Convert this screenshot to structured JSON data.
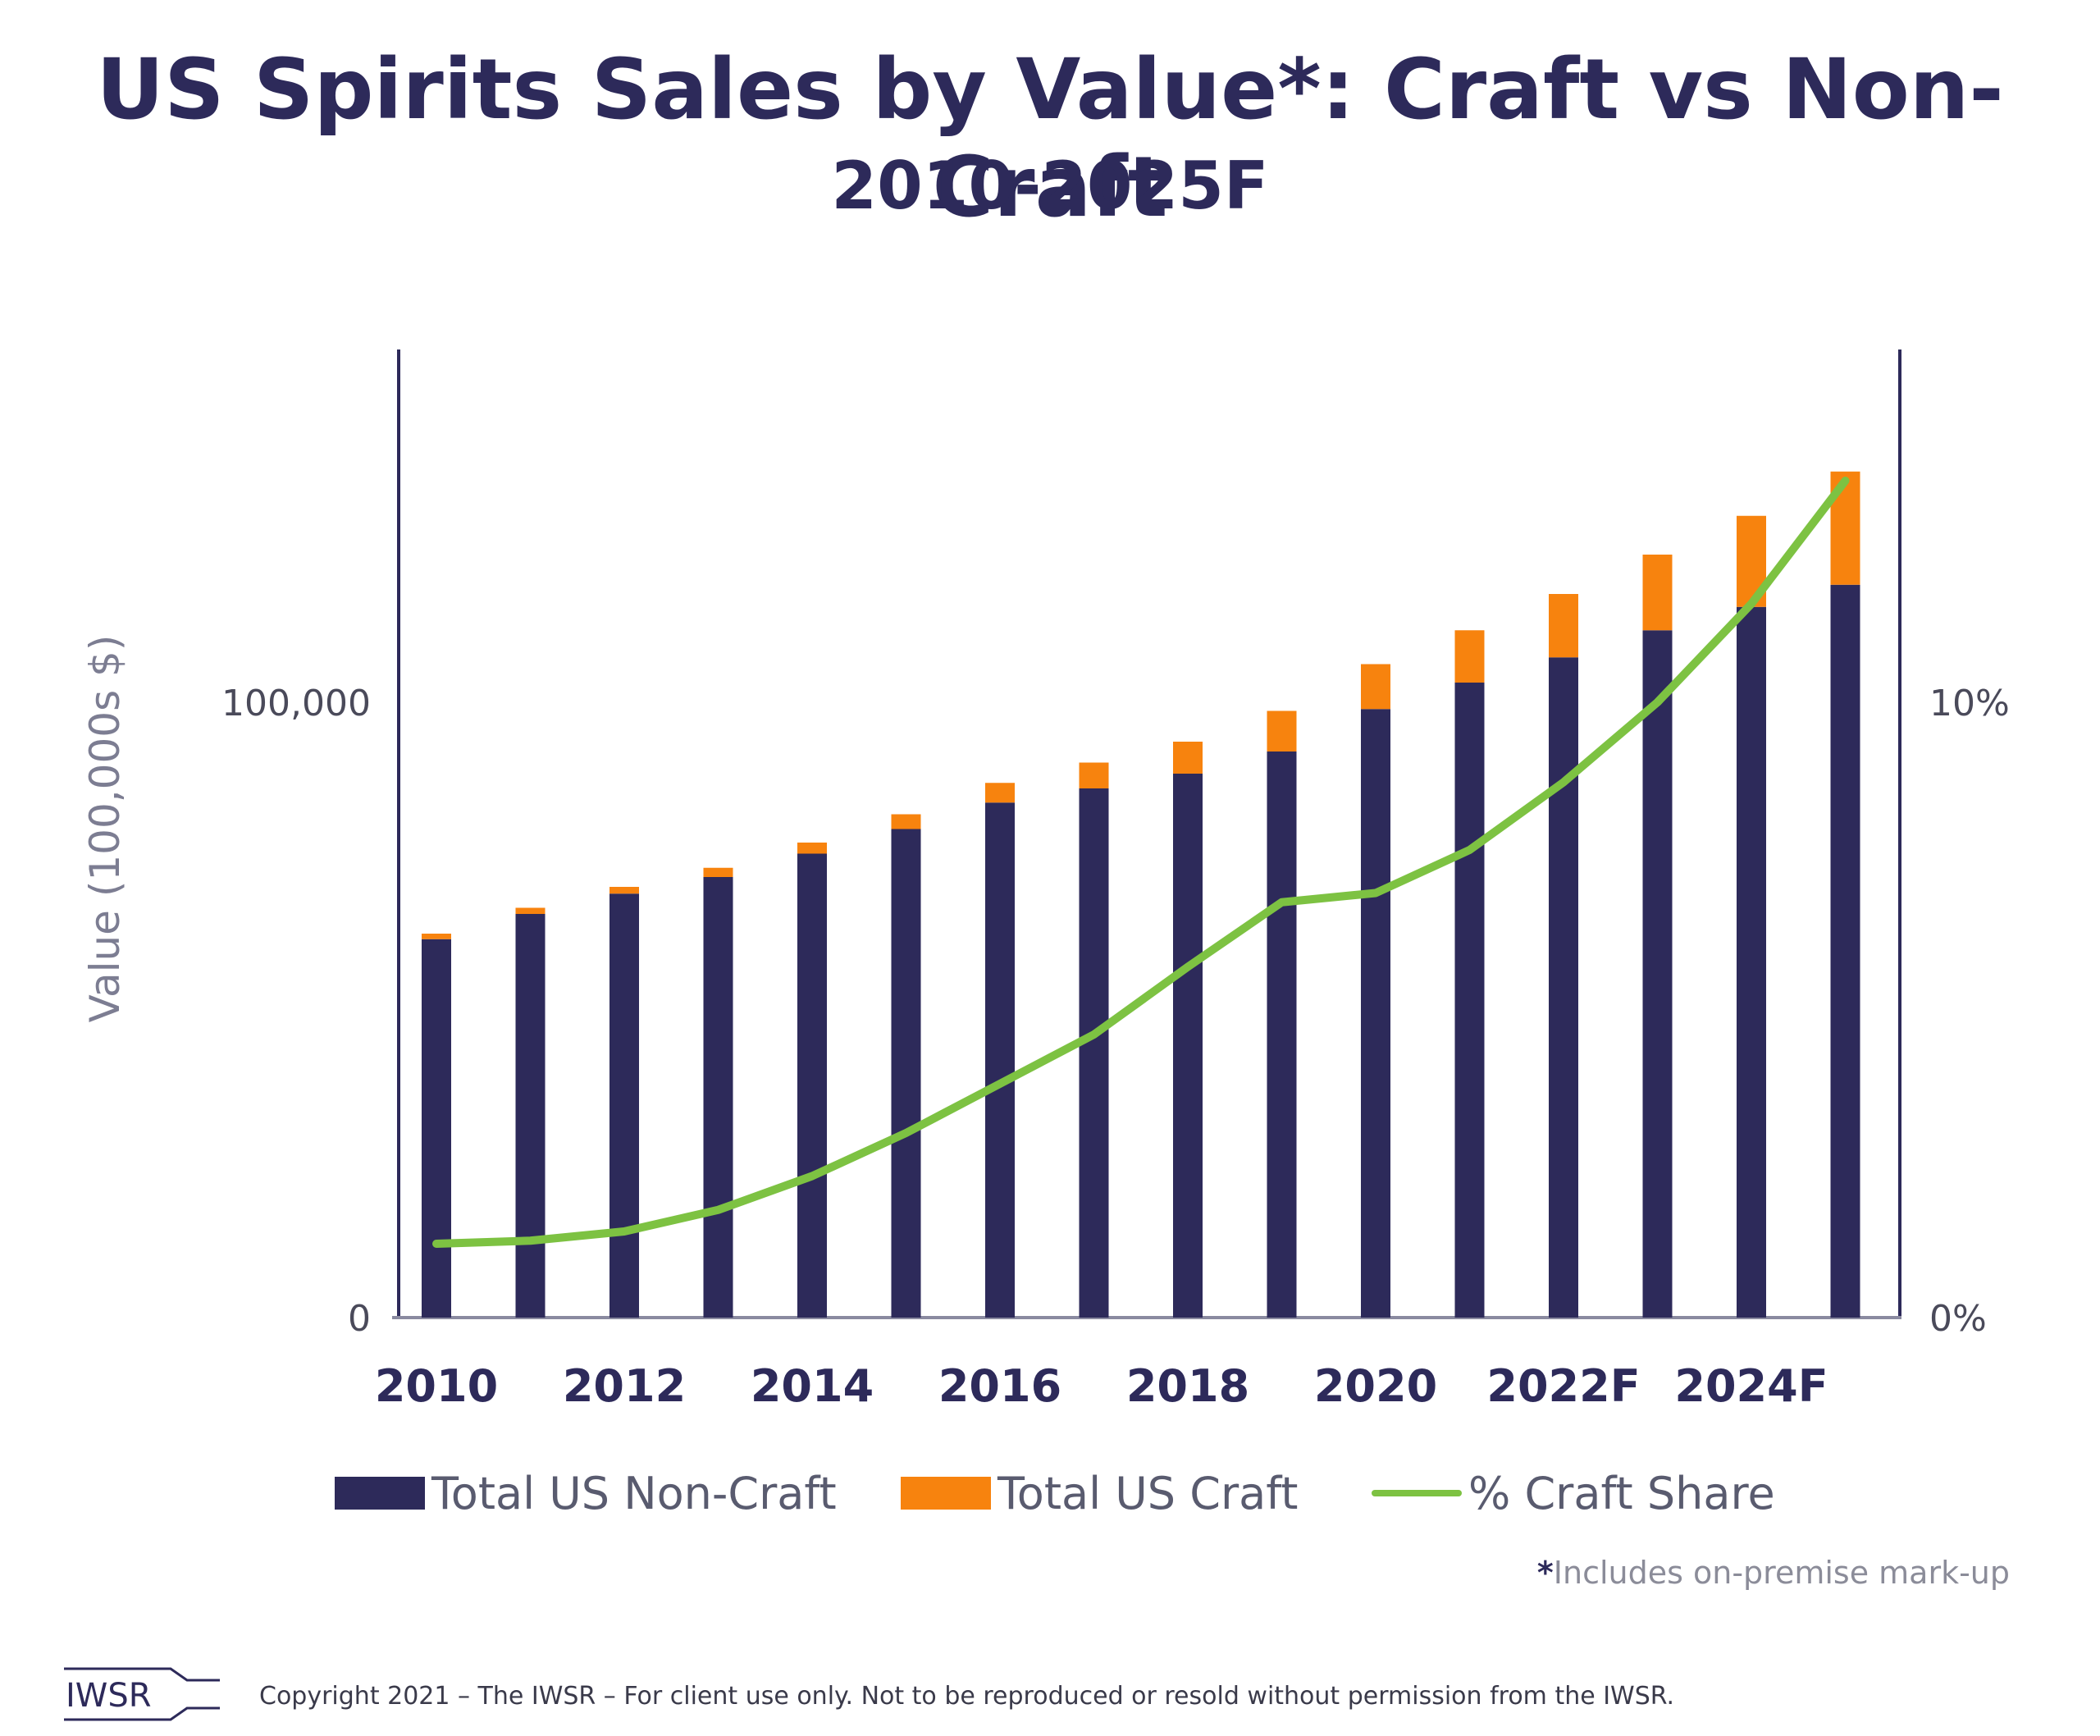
{
  "title": "US Spirits Sales by Value*: Craft vs Non-Craft",
  "subtitle": "2010-2025F",
  "footnote_star": "*",
  "footnote": "Includes on-premise mark-up",
  "copyright": "Copyright 2021 – The IWSR – For client use only. Not to be reproduced or resold without permission from the IWSR.",
  "logo_text": "IWSR",
  "colors": {
    "non_craft": "#2d2a5a",
    "craft": "#f7830e",
    "share": "#7dc242",
    "axis": "#2d2a5a"
  },
  "chart_data": {
    "type": "bar",
    "stacked": true,
    "title": "US Spirits Sales by Value*: Craft vs Non-Craft",
    "subtitle": "2010-2025F",
    "ylabel": "Value (100,000s $)",
    "y_ticks": [
      "0",
      "100,000"
    ],
    "y_tick_values": [
      0,
      100000
    ],
    "y2_ticks": [
      "0%",
      "10%"
    ],
    "y2_tick_values": [
      0,
      10
    ],
    "ylim": [
      0,
      157000
    ],
    "y2lim": [
      0,
      15.7
    ],
    "x_tick_labels": [
      "2010",
      "2012",
      "2014",
      "2016",
      "2018",
      "2020",
      "2022F",
      "2024F"
    ],
    "categories": [
      "2010",
      "2011",
      "2012",
      "2013",
      "2014",
      "2015",
      "2016",
      "2017",
      "2018",
      "2019",
      "2020",
      "2021",
      "2022F",
      "2023F",
      "2024F",
      "2025F"
    ],
    "series": [
      {
        "name": "Total US Non-Craft",
        "type": "bar",
        "values": [
          61500,
          65600,
          68900,
          71600,
          75400,
          79400,
          83700,
          86000,
          88400,
          92000,
          98900,
          103200,
          107300,
          111700,
          115500,
          119100
        ]
      },
      {
        "name": "Total US Craft",
        "type": "bar",
        "values": [
          900,
          1000,
          1100,
          1500,
          1800,
          2400,
          3200,
          4200,
          5200,
          6600,
          7300,
          8500,
          10300,
          12300,
          14800,
          18400
        ]
      },
      {
        "name": "% Craft Share",
        "type": "line",
        "axis": "right",
        "values": [
          1.2,
          1.25,
          1.4,
          1.75,
          2.3,
          3.0,
          3.8,
          4.6,
          5.7,
          6.75,
          6.9,
          7.6,
          8.7,
          10.0,
          11.6,
          13.6
        ]
      }
    ],
    "legend": [
      "Total US Non-Craft",
      "Total US Craft",
      "% Craft Share"
    ],
    "legend_position": "bottom"
  }
}
